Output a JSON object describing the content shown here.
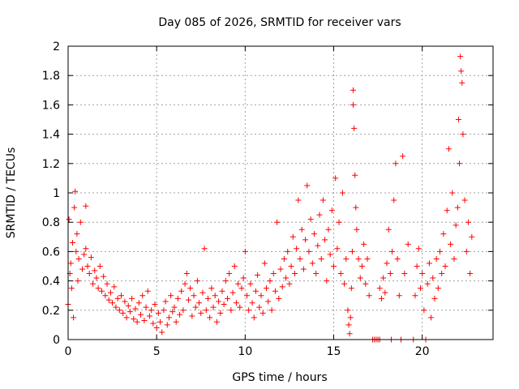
{
  "chart_data": {
    "type": "scatter",
    "title": "Day 085 of 2026, SRMTID for receiver vars",
    "xlabel": "GPS time / hours",
    "ylabel": "SRMTID / TECUs",
    "xlim": [
      0,
      24
    ],
    "ylim": [
      0,
      2
    ],
    "grid": true,
    "marker": "+",
    "color": "#ff0000",
    "xticks": [
      0,
      5,
      10,
      15,
      20
    ],
    "xtick_labels": [
      "0",
      "5",
      "10",
      "15",
      "20"
    ],
    "yticks": [
      0,
      0.2,
      0.4,
      0.6,
      0.8,
      1,
      1.2,
      1.4,
      1.6,
      1.8,
      2
    ],
    "ytick_labels": [
      "0",
      "0.2",
      "0.4",
      "0.6",
      "0.8",
      "1",
      "1.2",
      "1.4",
      "1.6",
      "1.8",
      "2"
    ],
    "series": [
      {
        "name": "SRMTID",
        "points": [
          [
            0.0,
            0.24
          ],
          [
            0.05,
            0.82
          ],
          [
            0.1,
            0.45
          ],
          [
            0.15,
            0.52
          ],
          [
            0.2,
            0.35
          ],
          [
            0.25,
            0.66
          ],
          [
            0.3,
            0.15
          ],
          [
            0.35,
            0.9
          ],
          [
            0.4,
            1.01
          ],
          [
            0.45,
            0.6
          ],
          [
            0.5,
            0.72
          ],
          [
            0.55,
            0.4
          ],
          [
            0.6,
            0.55
          ],
          [
            0.7,
            0.8
          ],
          [
            0.8,
            0.48
          ],
          [
            0.9,
            0.58
          ],
          [
            1.0,
            0.62
          ],
          [
            1.0,
            0.91
          ],
          [
            1.1,
            0.5
          ],
          [
            1.2,
            0.45
          ],
          [
            1.3,
            0.56
          ],
          [
            1.4,
            0.38
          ],
          [
            1.5,
            0.47
          ],
          [
            1.6,
            0.42
          ],
          [
            1.7,
            0.35
          ],
          [
            1.8,
            0.5
          ],
          [
            1.9,
            0.33
          ],
          [
            2.0,
            0.43
          ],
          [
            2.1,
            0.3
          ],
          [
            2.2,
            0.38
          ],
          [
            2.3,
            0.27
          ],
          [
            2.4,
            0.32
          ],
          [
            2.5,
            0.25
          ],
          [
            2.6,
            0.36
          ],
          [
            2.7,
            0.22
          ],
          [
            2.8,
            0.28
          ],
          [
            2.9,
            0.2
          ],
          [
            3.0,
            0.3
          ],
          [
            3.1,
            0.18
          ],
          [
            3.2,
            0.26
          ],
          [
            3.3,
            0.15
          ],
          [
            3.4,
            0.23
          ],
          [
            3.5,
            0.19
          ],
          [
            3.6,
            0.28
          ],
          [
            3.7,
            0.14
          ],
          [
            3.8,
            0.21
          ],
          [
            3.9,
            0.12
          ],
          [
            4.0,
            0.25
          ],
          [
            4.1,
            0.17
          ],
          [
            4.2,
            0.3
          ],
          [
            4.3,
            0.13
          ],
          [
            4.4,
            0.22
          ],
          [
            4.5,
            0.33
          ],
          [
            4.6,
            0.16
          ],
          [
            4.7,
            0.2
          ],
          [
            4.8,
            0.11
          ],
          [
            4.9,
            0.24
          ],
          [
            5.0,
            0.08
          ],
          [
            5.1,
            0.18
          ],
          [
            5.2,
            0.12
          ],
          [
            5.3,
            0.05
          ],
          [
            5.4,
            0.2
          ],
          [
            5.5,
            0.26
          ],
          [
            5.6,
            0.1
          ],
          [
            5.7,
            0.15
          ],
          [
            5.8,
            0.3
          ],
          [
            5.9,
            0.19
          ],
          [
            6.0,
            0.22
          ],
          [
            6.1,
            0.12
          ],
          [
            6.2,
            0.28
          ],
          [
            6.3,
            0.17
          ],
          [
            6.4,
            0.33
          ],
          [
            6.5,
            0.2
          ],
          [
            6.6,
            0.38
          ],
          [
            6.7,
            0.45
          ],
          [
            6.8,
            0.27
          ],
          [
            6.9,
            0.35
          ],
          [
            7.0,
            0.16
          ],
          [
            7.1,
            0.3
          ],
          [
            7.2,
            0.22
          ],
          [
            7.3,
            0.4
          ],
          [
            7.4,
            0.25
          ],
          [
            7.5,
            0.18
          ],
          [
            7.6,
            0.32
          ],
          [
            7.7,
            0.62
          ],
          [
            7.8,
            0.2
          ],
          [
            7.9,
            0.28
          ],
          [
            8.0,
            0.15
          ],
          [
            8.1,
            0.35
          ],
          [
            8.2,
            0.22
          ],
          [
            8.3,
            0.3
          ],
          [
            8.4,
            0.12
          ],
          [
            8.5,
            0.26
          ],
          [
            8.6,
            0.18
          ],
          [
            8.7,
            0.33
          ],
          [
            8.8,
            0.24
          ],
          [
            8.9,
            0.4
          ],
          [
            9.0,
            0.28
          ],
          [
            9.1,
            0.45
          ],
          [
            9.2,
            0.2
          ],
          [
            9.3,
            0.32
          ],
          [
            9.4,
            0.5
          ],
          [
            9.5,
            0.25
          ],
          [
            9.6,
            0.38
          ],
          [
            9.7,
            0.22
          ],
          [
            9.8,
            0.35
          ],
          [
            9.9,
            0.42
          ],
          [
            10.0,
            0.6
          ],
          [
            10.1,
            0.3
          ],
          [
            10.2,
            0.2
          ],
          [
            10.3,
            0.38
          ],
          [
            10.4,
            0.25
          ],
          [
            10.5,
            0.15
          ],
          [
            10.6,
            0.33
          ],
          [
            10.7,
            0.44
          ],
          [
            10.8,
            0.22
          ],
          [
            10.9,
            0.3
          ],
          [
            11.0,
            0.18
          ],
          [
            11.1,
            0.52
          ],
          [
            11.2,
            0.35
          ],
          [
            11.3,
            0.26
          ],
          [
            11.4,
            0.4
          ],
          [
            11.5,
            0.2
          ],
          [
            11.6,
            0.45
          ],
          [
            11.7,
            0.33
          ],
          [
            11.8,
            0.8
          ],
          [
            11.9,
            0.28
          ],
          [
            12.0,
            0.48
          ],
          [
            12.1,
            0.36
          ],
          [
            12.2,
            0.55
          ],
          [
            12.3,
            0.42
          ],
          [
            12.4,
            0.6
          ],
          [
            12.5,
            0.38
          ],
          [
            12.6,
            0.5
          ],
          [
            12.7,
            0.7
          ],
          [
            12.8,
            0.45
          ],
          [
            12.9,
            0.62
          ],
          [
            13.0,
            0.95
          ],
          [
            13.1,
            0.55
          ],
          [
            13.2,
            0.75
          ],
          [
            13.3,
            0.48
          ],
          [
            13.4,
            0.68
          ],
          [
            13.5,
            1.05
          ],
          [
            13.6,
            0.6
          ],
          [
            13.7,
            0.82
          ],
          [
            13.8,
            0.52
          ],
          [
            13.9,
            0.72
          ],
          [
            14.0,
            0.45
          ],
          [
            14.1,
            0.64
          ],
          [
            14.2,
            0.85
          ],
          [
            14.3,
            0.55
          ],
          [
            14.4,
            0.95
          ],
          [
            14.5,
            0.68
          ],
          [
            14.6,
            0.4
          ],
          [
            14.7,
            0.75
          ],
          [
            14.8,
            0.58
          ],
          [
            14.9,
            0.88
          ],
          [
            15.0,
            0.5
          ],
          [
            15.1,
            1.1
          ],
          [
            15.2,
            0.62
          ],
          [
            15.3,
            0.8
          ],
          [
            15.4,
            0.45
          ],
          [
            15.5,
            1.0
          ],
          [
            15.6,
            0.38
          ],
          [
            15.7,
            0.55
          ],
          [
            15.8,
            0.2
          ],
          [
            15.85,
            0.1
          ],
          [
            15.9,
            0.04
          ],
          [
            15.95,
            0.15
          ],
          [
            16.0,
            0.35
          ],
          [
            16.05,
            0.6
          ],
          [
            16.1,
            1.7
          ],
          [
            16.1,
            1.6
          ],
          [
            16.15,
            1.44
          ],
          [
            16.2,
            1.12
          ],
          [
            16.25,
            0.9
          ],
          [
            16.3,
            0.75
          ],
          [
            16.4,
            0.55
          ],
          [
            16.5,
            0.42
          ],
          [
            16.6,
            0.5
          ],
          [
            16.7,
            0.65
          ],
          [
            16.8,
            0.38
          ],
          [
            16.9,
            0.55
          ],
          [
            17.0,
            0.3
          ],
          [
            17.2,
            0.0
          ],
          [
            17.3,
            0.0
          ],
          [
            17.4,
            0.0
          ],
          [
            17.5,
            0.0
          ],
          [
            17.6,
            0.0
          ],
          [
            17.6,
            0.35
          ],
          [
            17.7,
            0.28
          ],
          [
            17.8,
            0.42
          ],
          [
            17.9,
            0.32
          ],
          [
            18.0,
            0.52
          ],
          [
            18.1,
            0.75
          ],
          [
            18.2,
            0.45
          ],
          [
            18.25,
            0.0
          ],
          [
            18.3,
            0.6
          ],
          [
            18.4,
            0.95
          ],
          [
            18.5,
            1.2
          ],
          [
            18.6,
            0.55
          ],
          [
            18.7,
            0.3
          ],
          [
            18.8,
            0.0
          ],
          [
            18.9,
            1.25
          ],
          [
            19.0,
            0.45
          ],
          [
            19.2,
            0.65
          ],
          [
            19.5,
            0.0
          ],
          [
            19.6,
            0.3
          ],
          [
            19.7,
            0.5
          ],
          [
            19.8,
            0.62
          ],
          [
            19.9,
            0.35
          ],
          [
            20.0,
            0.45
          ],
          [
            20.1,
            0.2
          ],
          [
            20.2,
            0.0
          ],
          [
            20.3,
            0.38
          ],
          [
            20.4,
            0.52
          ],
          [
            20.5,
            0.15
          ],
          [
            20.6,
            0.42
          ],
          [
            20.7,
            0.28
          ],
          [
            20.8,
            0.55
          ],
          [
            20.9,
            0.35
          ],
          [
            21.0,
            0.6
          ],
          [
            21.1,
            0.45
          ],
          [
            21.2,
            0.72
          ],
          [
            21.3,
            0.5
          ],
          [
            21.4,
            0.88
          ],
          [
            21.5,
            1.3
          ],
          [
            21.6,
            0.65
          ],
          [
            21.7,
            1.0
          ],
          [
            21.8,
            0.55
          ],
          [
            21.9,
            0.78
          ],
          [
            22.0,
            0.9
          ],
          [
            22.05,
            1.5
          ],
          [
            22.1,
            1.2
          ],
          [
            22.15,
            1.93
          ],
          [
            22.2,
            1.83
          ],
          [
            22.25,
            1.75
          ],
          [
            22.3,
            1.4
          ],
          [
            22.4,
            0.95
          ],
          [
            22.5,
            0.6
          ],
          [
            22.6,
            0.8
          ],
          [
            22.7,
            0.45
          ],
          [
            22.8,
            0.7
          ]
        ]
      }
    ]
  }
}
